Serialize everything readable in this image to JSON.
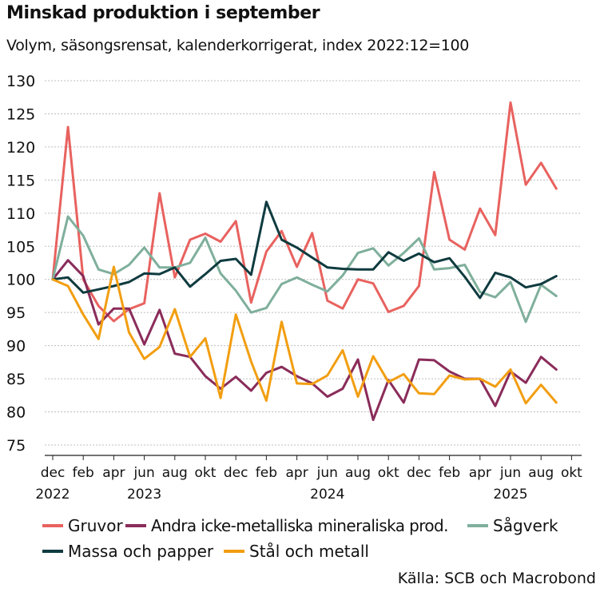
{
  "chart_data": {
    "type": "line",
    "title": "Minskad produktion i september",
    "subtitle": "Volym, säsongsrensat, kalenderkorrigerat, index 2022:12=100",
    "source": "Källa: SCB och Macrobond",
    "ylim": [
      75,
      130
    ],
    "yticks": [
      75,
      80,
      85,
      90,
      95,
      100,
      105,
      110,
      115,
      120,
      125,
      130
    ],
    "x_count": 34,
    "month_labels": [
      {
        "i": 0,
        "label": "dec"
      },
      {
        "i": 2,
        "label": "feb"
      },
      {
        "i": 4,
        "label": "apr"
      },
      {
        "i": 6,
        "label": "jun"
      },
      {
        "i": 8,
        "label": "aug"
      },
      {
        "i": 10,
        "label": "okt"
      },
      {
        "i": 12,
        "label": "dec"
      },
      {
        "i": 14,
        "label": "feb"
      },
      {
        "i": 16,
        "label": "apr"
      },
      {
        "i": 18,
        "label": "jun"
      },
      {
        "i": 20,
        "label": "aug"
      },
      {
        "i": 22,
        "label": "okt"
      },
      {
        "i": 24,
        "label": "dec"
      },
      {
        "i": 26,
        "label": "feb"
      },
      {
        "i": 28,
        "label": "apr"
      },
      {
        "i": 30,
        "label": "jun"
      },
      {
        "i": 32,
        "label": "aug"
      },
      {
        "i": 34,
        "label": "okt"
      }
    ],
    "year_labels": [
      {
        "i": 0,
        "label": "2022"
      },
      {
        "i": 6,
        "label": "2023"
      },
      {
        "i": 18,
        "label": "2024"
      },
      {
        "i": 30,
        "label": "2025"
      }
    ],
    "series": [
      {
        "name": "Gruvor",
        "color": "#e8625f",
        "values": [
          100,
          123,
          100,
          96,
          93.7,
          95.5,
          96.4,
          113,
          100.3,
          106,
          106.9,
          105.7,
          108.8,
          96.5,
          104.2,
          107.3,
          101.9,
          107,
          96.8,
          95.6,
          100,
          99.4,
          95.1,
          96,
          99,
          116.2,
          106,
          104.5,
          110.7,
          106.7,
          126.7,
          114.3,
          117.6,
          113.7
        ]
      },
      {
        "name": "Andra icke-metalliska mineraliska prod.",
        "color": "#8a2c5a",
        "values": [
          100,
          102.9,
          100.5,
          93.2,
          95.6,
          95.6,
          90.2,
          95.4,
          88.8,
          88.3,
          85.4,
          83.5,
          85.3,
          83.2,
          85.9,
          86.8,
          85.4,
          84.3,
          82.3,
          83.5,
          87.9,
          78.8,
          84.8,
          81.4,
          87.9,
          87.8,
          86.1,
          85,
          85,
          80.9,
          86.1,
          84.4,
          88.3,
          86.4
        ]
      },
      {
        "name": "Sågverk",
        "color": "#7faf9c",
        "values": [
          100,
          109.5,
          106.6,
          101.5,
          100.8,
          102.2,
          104.8,
          101.8,
          101.8,
          102.5,
          106.3,
          100.9,
          98.3,
          95,
          95.7,
          99.3,
          100.3,
          99.2,
          98.2,
          100.6,
          104,
          104.7,
          102.1,
          104,
          106.2,
          101.5,
          101.7,
          102.2,
          98.1,
          97.3,
          99.6,
          93.6,
          99.2,
          97.5
        ]
      },
      {
        "name": "Massa och papper",
        "color": "#0f3b3f",
        "values": [
          100,
          100.3,
          98,
          98.5,
          99,
          99.6,
          100.9,
          100.8,
          101.8,
          98.9,
          100.8,
          102.8,
          103.1,
          100.7,
          111.7,
          106,
          104.8,
          103.3,
          101.8,
          101.6,
          101.5,
          101.5,
          104.1,
          102.8,
          103.9,
          102.6,
          103.2,
          100.4,
          97.2,
          101,
          100.3,
          98.8,
          99.3,
          100.5
        ]
      },
      {
        "name": "Stål och metall",
        "color": "#f29e11",
        "values": [
          100,
          99,
          94.7,
          91,
          101.9,
          92,
          88,
          89.8,
          95.5,
          88.3,
          91.1,
          82.1,
          94.7,
          87.6,
          81.7,
          93.6,
          84.3,
          84.2,
          85.5,
          89.3,
          82.3,
          88.4,
          84.5,
          85.7,
          82.8,
          82.7,
          85.5,
          84.9,
          85,
          83.8,
          86.4,
          81.3,
          84.1,
          81.4
        ]
      }
    ]
  }
}
